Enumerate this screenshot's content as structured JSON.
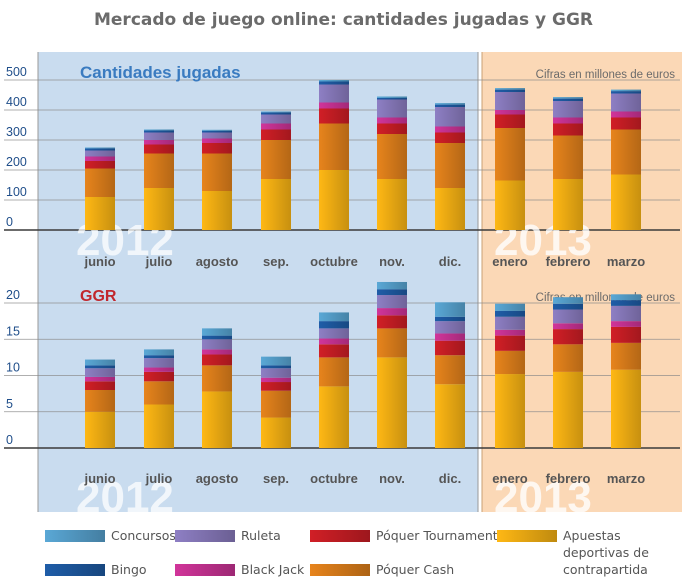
{
  "title": "Mercado de juego online: cantidades jugadas y GGR",
  "colors": {
    "panel_2012": "#c9dcef",
    "panel_2013": "#fbd8b6",
    "Concursos": "#5aa8d6",
    "Bingo": "#1f5da8",
    "Ruleta": "#8e7fc4",
    "Black Jack": "#d1359a",
    "Póquer Tournament": "#d11f26",
    "Póquer Cash": "#e7841c",
    "Apuestas deportivas de contrapartida": "#ffb814"
  },
  "legend": [
    {
      "label": "Concursos",
      "color": "#5aa8d6"
    },
    {
      "label": "Ruleta",
      "color": "#8e7fc4"
    },
    {
      "label": "Póquer Tournament",
      "color": "#d11f26"
    },
    {
      "label": "Apuestas deportivas de contrapartida",
      "color": "#ffb814"
    },
    {
      "label": "Bingo",
      "color": "#1f5da8"
    },
    {
      "label": "Black Jack",
      "color": "#d1359a"
    },
    {
      "label": "Póquer Cash",
      "color": "#e7841c"
    }
  ],
  "chart_data": [
    {
      "type": "bar",
      "stacked": true,
      "title": "Cantidades jugadas",
      "note": "Cifras en millones de euros",
      "categories": [
        "junio",
        "julio",
        "agosto",
        "sep.",
        "octubre",
        "nov.",
        "dic.",
        "enero",
        "febrero",
        "marzo"
      ],
      "period_labels": [
        "2012",
        "2013"
      ],
      "y_ticks": [
        0,
        100,
        200,
        300,
        400,
        500
      ],
      "ylim": [
        0,
        500
      ],
      "series": [
        {
          "name": "Apuestas deportivas de contrapartida",
          "values": [
            110,
            140,
            130,
            170,
            200,
            170,
            140,
            165,
            170,
            185
          ]
        },
        {
          "name": "Póquer Cash",
          "values": [
            95,
            115,
            125,
            130,
            155,
            150,
            150,
            175,
            145,
            150
          ]
        },
        {
          "name": "Póquer Tournament",
          "values": [
            25,
            30,
            35,
            35,
            50,
            35,
            35,
            45,
            40,
            40
          ]
        },
        {
          "name": "Black Jack",
          "values": [
            15,
            15,
            15,
            20,
            20,
            20,
            20,
            15,
            20,
            20
          ]
        },
        {
          "name": "Ruleta",
          "values": [
            20,
            25,
            20,
            30,
            60,
            60,
            65,
            60,
            55,
            60
          ]
        },
        {
          "name": "Bingo",
          "values": [
            7,
            7,
            6,
            7,
            10,
            5,
            8,
            8,
            8,
            8
          ]
        },
        {
          "name": "Concursos",
          "values": [
            3,
            3,
            3,
            3,
            5,
            5,
            5,
            5,
            5,
            5
          ]
        }
      ]
    },
    {
      "type": "bar",
      "stacked": true,
      "title": "GGR",
      "note": "Cifras en millones de euros",
      "categories": [
        "junio",
        "julio",
        "agosto",
        "sep.",
        "octubre",
        "nov.",
        "dic.",
        "enero",
        "febrero",
        "marzo"
      ],
      "period_labels": [
        "2012",
        "2013"
      ],
      "y_ticks": [
        0,
        5,
        10,
        15,
        20
      ],
      "ylim": [
        0,
        22
      ],
      "series": [
        {
          "name": "Apuestas deportivas de contrapartida",
          "values": [
            5,
            6,
            7.8,
            4.2,
            8.5,
            12.5,
            8.8,
            10.2,
            10.5,
            10.8
          ]
        },
        {
          "name": "Póquer Cash",
          "values": [
            3,
            3.2,
            3.6,
            3.7,
            4,
            4,
            4,
            3.2,
            3.8,
            3.7
          ]
        },
        {
          "name": "Póquer Tournament",
          "values": [
            1.2,
            1.3,
            1.5,
            1.2,
            1.8,
            1.8,
            2,
            2.1,
            2.1,
            2.2
          ]
        },
        {
          "name": "Black Jack",
          "values": [
            0.6,
            0.6,
            0.7,
            0.6,
            0.8,
            1,
            1,
            0.8,
            0.8,
            0.8
          ]
        },
        {
          "name": "Ruleta",
          "values": [
            1.2,
            1.3,
            1.4,
            1.3,
            1.4,
            1.8,
            1.7,
            1.8,
            1.9,
            2.1
          ]
        },
        {
          "name": "Bingo",
          "values": [
            0.4,
            0.4,
            0.5,
            0.4,
            1,
            0.8,
            0.6,
            0.8,
            0.8,
            0.8
          ]
        },
        {
          "name": "Concursos",
          "values": [
            0.8,
            0.8,
            1,
            1.2,
            1.2,
            1,
            2,
            1,
            0.9,
            0.8
          ]
        }
      ]
    }
  ]
}
